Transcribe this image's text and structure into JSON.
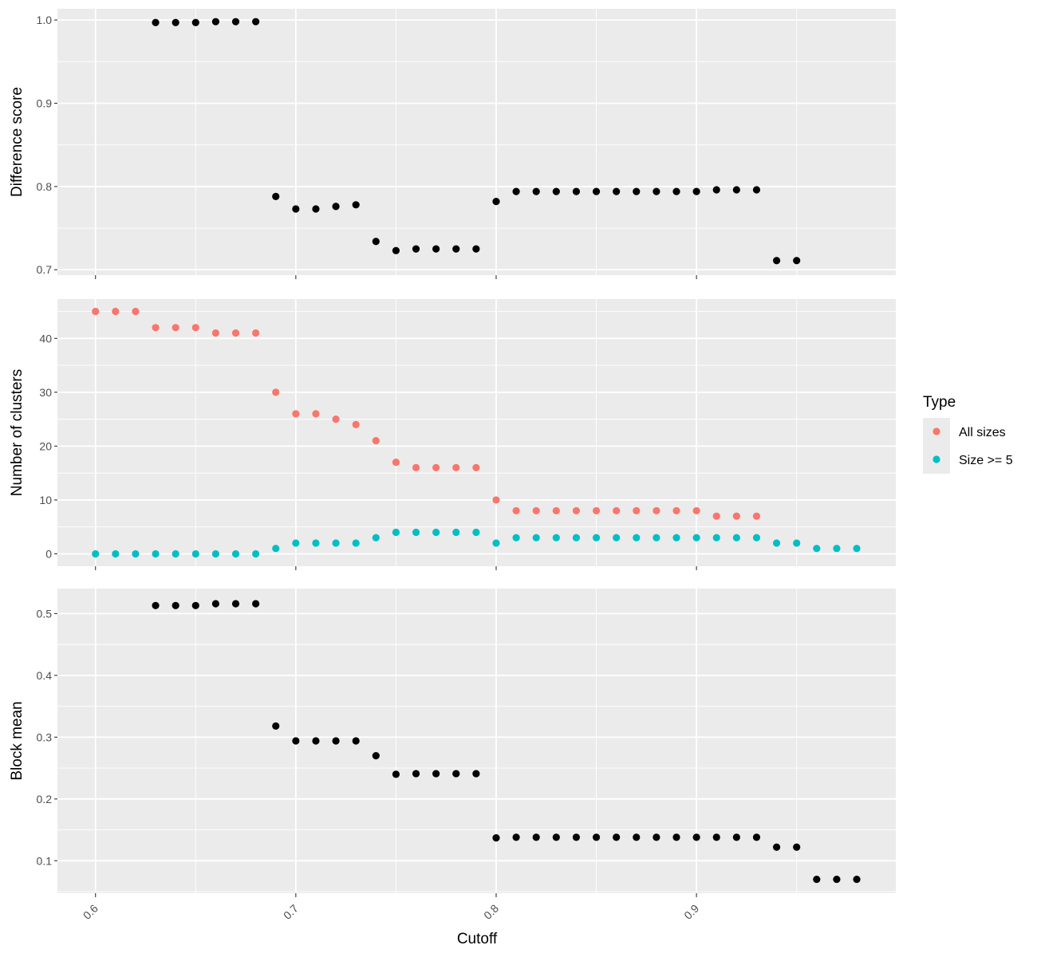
{
  "chart_data": {
    "type": "scatter",
    "xlabel": "Cutoff",
    "x_ticks": [
      0.6,
      0.7,
      0.8,
      0.9
    ],
    "x_tick_labels": [
      "0.6",
      "0.7",
      "0.8",
      "0.9"
    ],
    "xlim": [
      0.581,
      0.9995
    ],
    "grid": true,
    "legend": {
      "title": "Type",
      "placement": "right",
      "entries": [
        {
          "label": "All sizes",
          "color": "#F8766D"
        },
        {
          "label": "Size >= 5",
          "color": "#00BFC4"
        }
      ]
    },
    "panels": [
      {
        "ylabel": "Difference score",
        "ylim": [
          0.6935,
          1.0135
        ],
        "y_ticks": [
          0.7,
          0.8,
          0.9,
          1.0
        ],
        "y_tick_labels": [
          "0.7",
          "0.8",
          "0.9",
          "1.0"
        ],
        "series": [
          {
            "color": "#000000",
            "x": [
              0.63,
              0.64,
              0.65,
              0.66,
              0.67,
              0.68,
              0.69,
              0.7,
              0.71,
              0.72,
              0.73,
              0.74,
              0.75,
              0.76,
              0.77,
              0.78,
              0.79,
              0.8,
              0.81,
              0.82,
              0.83,
              0.84,
              0.85,
              0.86,
              0.87,
              0.88,
              0.89,
              0.9,
              0.91,
              0.92,
              0.93,
              0.94,
              0.95
            ],
            "y": [
              0.997,
              0.997,
              0.997,
              0.998,
              0.998,
              0.998,
              0.788,
              0.773,
              0.773,
              0.776,
              0.778,
              0.734,
              0.723,
              0.725,
              0.725,
              0.725,
              0.725,
              0.782,
              0.794,
              0.794,
              0.794,
              0.794,
              0.794,
              0.794,
              0.794,
              0.794,
              0.794,
              0.794,
              0.796,
              0.796,
              0.796,
              0.711,
              0.711
            ]
          }
        ]
      },
      {
        "ylabel": "Number of clusters",
        "ylim": [
          -2.3,
          47.3
        ],
        "y_ticks": [
          0,
          10,
          20,
          30,
          40
        ],
        "y_tick_labels": [
          "0",
          "10",
          "20",
          "30",
          "40"
        ],
        "series": [
          {
            "name": "All sizes",
            "color": "#F8766D",
            "x": [
              0.6,
              0.61,
              0.62,
              0.63,
              0.64,
              0.65,
              0.66,
              0.67,
              0.68,
              0.69,
              0.7,
              0.71,
              0.72,
              0.73,
              0.74,
              0.75,
              0.76,
              0.77,
              0.78,
              0.79,
              0.8,
              0.81,
              0.82,
              0.83,
              0.84,
              0.85,
              0.86,
              0.87,
              0.88,
              0.89,
              0.9,
              0.91,
              0.92,
              0.93
            ],
            "y": [
              45,
              45,
              45,
              42,
              42,
              42,
              41,
              41,
              41,
              30,
              26,
              26,
              25,
              24,
              21,
              17,
              16,
              16,
              16,
              16,
              10,
              8,
              8,
              8,
              8,
              8,
              8,
              8,
              8,
              8,
              8,
              7,
              7,
              7
            ]
          },
          {
            "name": "Size >= 5",
            "color": "#00BFC4",
            "x": [
              0.6,
              0.61,
              0.62,
              0.63,
              0.64,
              0.65,
              0.66,
              0.67,
              0.68,
              0.69,
              0.7,
              0.71,
              0.72,
              0.73,
              0.74,
              0.75,
              0.76,
              0.77,
              0.78,
              0.79,
              0.8,
              0.81,
              0.82,
              0.83,
              0.84,
              0.85,
              0.86,
              0.87,
              0.88,
              0.89,
              0.9,
              0.91,
              0.92,
              0.93,
              0.94,
              0.95,
              0.96,
              0.97,
              0.98
            ],
            "y": [
              0,
              0,
              0,
              0,
              0,
              0,
              0,
              0,
              0,
              1,
              2,
              2,
              2,
              2,
              3,
              4,
              4,
              4,
              4,
              4,
              2,
              3,
              3,
              3,
              3,
              3,
              3,
              3,
              3,
              3,
              3,
              3,
              3,
              3,
              2,
              2,
              1,
              1,
              1
            ]
          }
        ]
      },
      {
        "ylabel": "Block mean",
        "ylim": [
          0.0475,
          0.5405
        ],
        "y_ticks": [
          0.1,
          0.2,
          0.3,
          0.4,
          0.5
        ],
        "y_tick_labels": [
          "0.1",
          "0.2",
          "0.3",
          "0.4",
          "0.5"
        ],
        "series": [
          {
            "color": "#000000",
            "x": [
              0.63,
              0.64,
              0.65,
              0.66,
              0.67,
              0.68,
              0.69,
              0.7,
              0.71,
              0.72,
              0.73,
              0.74,
              0.75,
              0.76,
              0.77,
              0.78,
              0.79,
              0.8,
              0.81,
              0.82,
              0.83,
              0.84,
              0.85,
              0.86,
              0.87,
              0.88,
              0.89,
              0.9,
              0.91,
              0.92,
              0.93,
              0.94,
              0.95,
              0.96,
              0.97,
              0.98
            ],
            "y": [
              0.513,
              0.513,
              0.513,
              0.516,
              0.516,
              0.516,
              0.318,
              0.294,
              0.294,
              0.294,
              0.294,
              0.27,
              0.24,
              0.241,
              0.241,
              0.241,
              0.241,
              0.137,
              0.138,
              0.138,
              0.138,
              0.138,
              0.138,
              0.138,
              0.138,
              0.138,
              0.138,
              0.138,
              0.138,
              0.138,
              0.138,
              0.122,
              0.122,
              0.07,
              0.07,
              0.07
            ]
          }
        ]
      }
    ]
  }
}
